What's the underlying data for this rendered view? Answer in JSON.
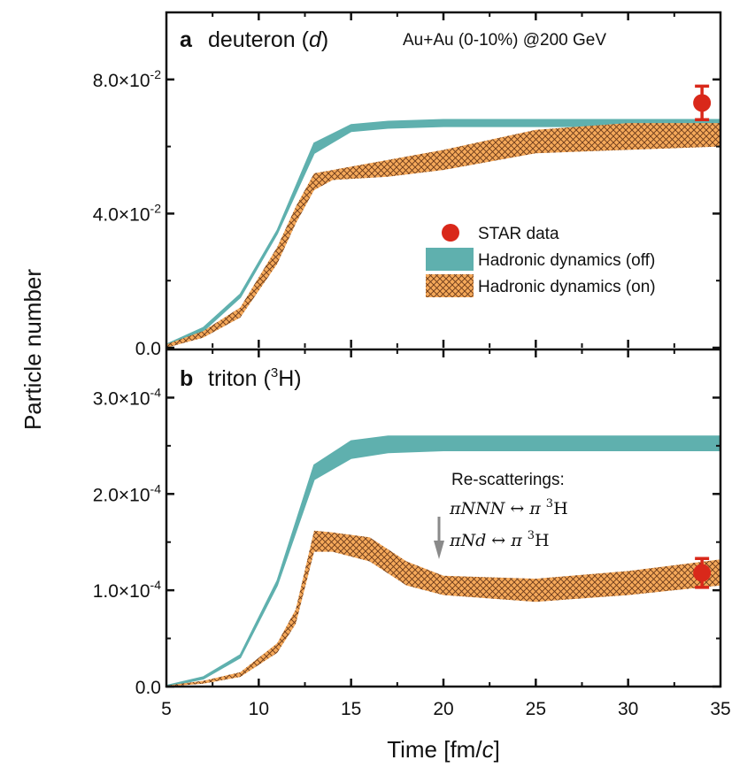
{
  "chart_data": {
    "type": "area",
    "xlabel": "Time [fm/c]",
    "xlabel_parts": {
      "prefix": "Time [fm/",
      "italic": "c",
      "suffix": "]"
    },
    "ylabel": "Particle number",
    "x_range": [
      5,
      35
    ],
    "x_ticks": [
      5,
      10,
      15,
      20,
      25,
      30,
      35
    ],
    "x_tick_labels": [
      "5",
      "10",
      "15",
      "20",
      "25",
      "30",
      "35"
    ],
    "colors": {
      "off_band": "#5fb0ae",
      "on_band": "#f5a95a",
      "on_hatch": "#6b3a1a",
      "star_data": "#d9281a",
      "arrow": "#8a8a8a"
    },
    "legend": {
      "placement": "panel a, center-right",
      "entries": [
        {
          "label": "STAR data",
          "kind": "marker"
        },
        {
          "label": "Hadronic dynamics (off)",
          "kind": "band-solid"
        },
        {
          "label": "Hadronic dynamics (on)",
          "kind": "band-hatched"
        }
      ]
    },
    "panels": [
      {
        "id": "a",
        "letter": "a",
        "title": "deuteron (",
        "title_italic": "d",
        "title_close": ")",
        "annotation": "Au+Au (0-10%) @200 GeV",
        "y_range": [
          0,
          0.1
        ],
        "y_ticks": [
          0,
          0.04,
          0.08
        ],
        "y_tick_labels": [
          {
            "mant": "0.0",
            "exp": ""
          },
          {
            "mant": "4.0×10",
            "exp": "-2"
          },
          {
            "mant": "8.0×10",
            "exp": "-2"
          }
        ],
        "y_minor_ticks": [
          0.02,
          0.06
        ],
        "series": [
          {
            "name": "Hadronic dynamics (off)",
            "x": [
              5,
              7,
              9,
              11,
              13,
              15,
              17,
              20,
              25,
              30,
              35
            ],
            "lower": [
              0.0005,
              0.005,
              0.015,
              0.034,
              0.058,
              0.0645,
              0.0655,
              0.066,
              0.066,
              0.066,
              0.066
            ],
            "upper": [
              0.001,
              0.006,
              0.016,
              0.035,
              0.061,
              0.0665,
              0.0675,
              0.068,
              0.068,
              0.068,
              0.068
            ]
          },
          {
            "name": "Hadronic dynamics (on)",
            "x": [
              5,
              7,
              9,
              11,
              12,
              13,
              14,
              17,
              20,
              25,
              30,
              35
            ],
            "lower": [
              0.0,
              0.003,
              0.009,
              0.025,
              0.037,
              0.047,
              0.05,
              0.051,
              0.053,
              0.058,
              0.059,
              0.06
            ],
            "upper": [
              0.001,
              0.005,
              0.012,
              0.03,
              0.042,
              0.052,
              0.053,
              0.056,
              0.059,
              0.065,
              0.067,
              0.067
            ]
          }
        ],
        "data_points": [
          {
            "name": "STAR data",
            "x": 34,
            "y": 0.073,
            "err": 0.005
          }
        ]
      },
      {
        "id": "b",
        "letter": "b",
        "title": "triton (",
        "title_sup": "3",
        "title_close": "H)",
        "y_range": [
          0,
          0.00035
        ],
        "y_ticks": [
          0,
          0.0001,
          0.0002,
          0.0003
        ],
        "y_tick_labels": [
          {
            "mant": "0.0",
            "exp": ""
          },
          {
            "mant": "1.0×10",
            "exp": "-4"
          },
          {
            "mant": "2.0×10",
            "exp": "-4"
          },
          {
            "mant": "3.0×10",
            "exp": "-4"
          }
        ],
        "y_minor_ticks": [
          5e-05,
          0.00015,
          0.00025
        ],
        "annotation_arrow": {
          "title": "Re-scatterings:",
          "lines": [
            {
              "lhs": "πNNN",
              "arrow": "↔",
              "rhs_pi": "π",
              "sup": "3",
              "rhs": "H"
            },
            {
              "lhs": "πNd",
              "arrow": "↔",
              "rhs_pi": "π",
              "sup": "3",
              "rhs": "H"
            }
          ]
        },
        "series": [
          {
            "name": "Hadronic dynamics (off)",
            "x": [
              5,
              7,
              9,
              11,
              13,
              15,
              17,
              20,
              25,
              30,
              35
            ],
            "lower": [
              0.0,
              8e-06,
              3e-05,
              0.000105,
              0.000215,
              0.000237,
              0.000243,
              0.000245,
              0.000245,
              0.000245,
              0.000245
            ],
            "upper": [
              1e-06,
              1e-05,
              3.3e-05,
              0.00011,
              0.00023,
              0.000255,
              0.00026,
              0.00026,
              0.00026,
              0.00026,
              0.00026
            ]
          },
          {
            "name": "Hadronic dynamics (on)",
            "x": [
              5,
              7,
              9,
              11,
              12,
              13,
              14,
              16,
              18,
              20,
              25,
              30,
              35
            ],
            "lower": [
              0.0,
              3e-06,
              1e-05,
              3.5e-05,
              6.5e-05,
              0.00014,
              0.00014,
              0.00013,
              0.000105,
              9.5e-05,
              8.8e-05,
              9.5e-05,
              0.000105
            ],
            "upper": [
              1e-06,
              6e-06,
              1.5e-05,
              4.5e-05,
              8e-05,
              0.000162,
              0.00016,
              0.000155,
              0.00013,
              0.000115,
              0.000112,
              0.00012,
              0.000132
            ]
          }
        ],
        "data_points": [
          {
            "name": "STAR data",
            "x": 34,
            "y": 0.000118,
            "err": 1.5e-05
          }
        ]
      }
    ]
  }
}
